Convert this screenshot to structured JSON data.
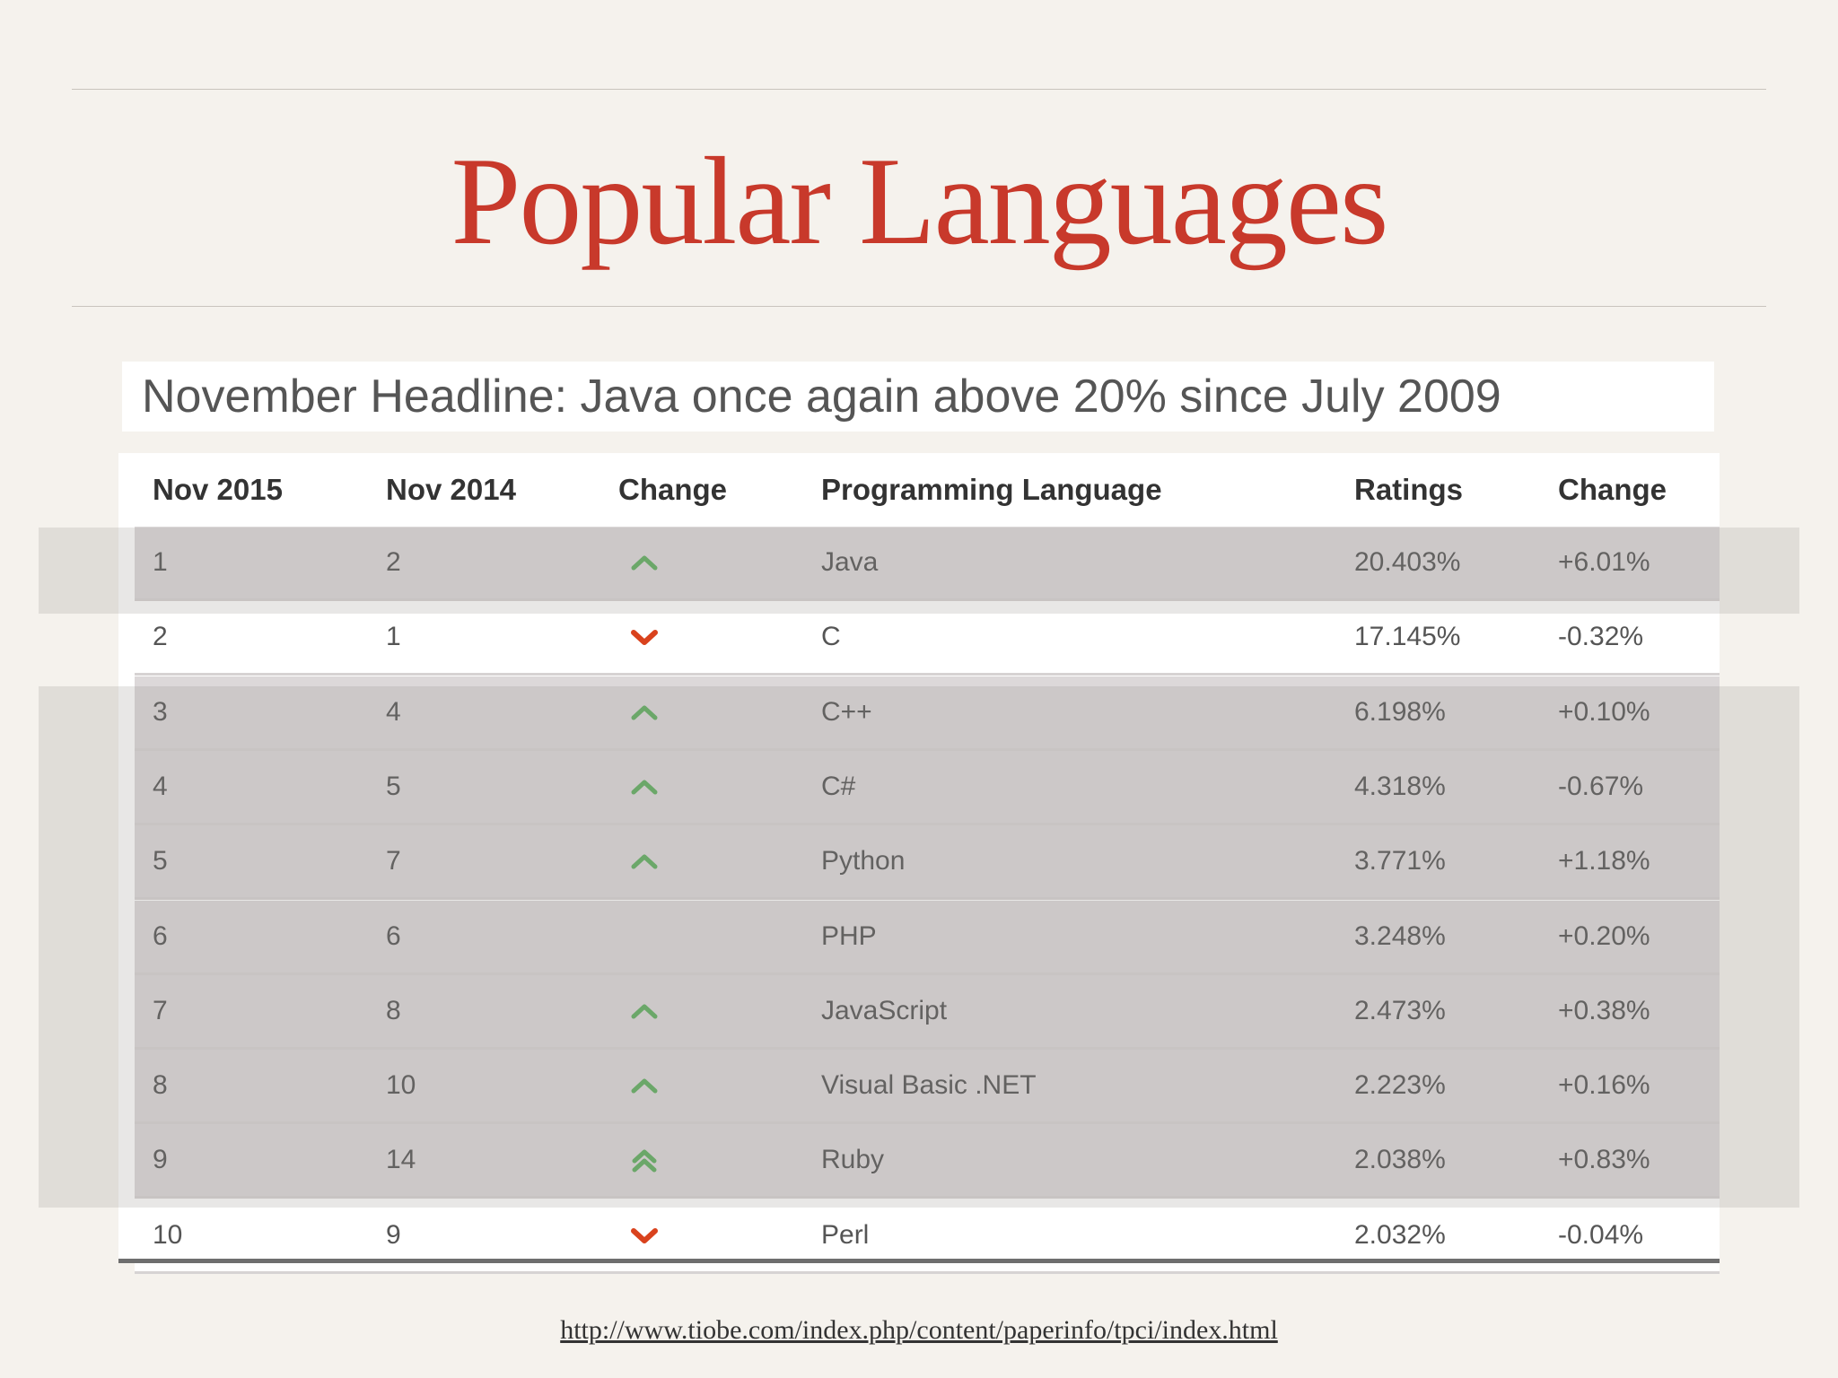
{
  "slide": {
    "title": "Popular Languages",
    "headline": "November Headline: Java once again above 20% since July 2009",
    "source_url": "http://www.tiobe.com/index.php/content/paperinfo/tpci/index.html"
  },
  "table": {
    "headers": [
      "Nov 2015",
      "Nov 2014",
      "Change",
      "Programming Language",
      "Ratings",
      "Change"
    ],
    "rows": [
      {
        "nov2015": "1",
        "nov2014": "2",
        "trend": "up",
        "language": "Java",
        "rating": "20.403%",
        "change": "+6.01%"
      },
      {
        "nov2015": "2",
        "nov2014": "1",
        "trend": "down",
        "language": "C",
        "rating": "17.145%",
        "change": "-0.32%"
      },
      {
        "nov2015": "3",
        "nov2014": "4",
        "trend": "up",
        "language": "C++",
        "rating": "6.198%",
        "change": "+0.10%"
      },
      {
        "nov2015": "4",
        "nov2014": "5",
        "trend": "up",
        "language": "C#",
        "rating": "4.318%",
        "change": "-0.67%"
      },
      {
        "nov2015": "5",
        "nov2014": "7",
        "trend": "up",
        "language": "Python",
        "rating": "3.771%",
        "change": "+1.18%"
      },
      {
        "nov2015": "6",
        "nov2014": "6",
        "trend": "none",
        "language": "PHP",
        "rating": "3.248%",
        "change": "+0.20%"
      },
      {
        "nov2015": "7",
        "nov2014": "8",
        "trend": "up",
        "language": "JavaScript",
        "rating": "2.473%",
        "change": "+0.38%"
      },
      {
        "nov2015": "8",
        "nov2014": "10",
        "trend": "up",
        "language": "Visual Basic .NET",
        "rating": "2.223%",
        "change": "+0.16%"
      },
      {
        "nov2015": "9",
        "nov2014": "14",
        "trend": "up-double",
        "language": "Ruby",
        "rating": "2.038%",
        "change": "+0.83%"
      },
      {
        "nov2015": "10",
        "nov2014": "9",
        "trend": "down",
        "language": "Perl",
        "rating": "2.032%",
        "change": "-0.04%"
      }
    ]
  },
  "colors": {
    "title": "#c8392b",
    "arrow_up": "#5fae5f",
    "arrow_down": "#d9421d",
    "background": "#f5f2ed"
  },
  "icons": {
    "up": "chevron-up-icon",
    "down": "chevron-down-icon",
    "up-double": "double-chevron-up-icon"
  }
}
